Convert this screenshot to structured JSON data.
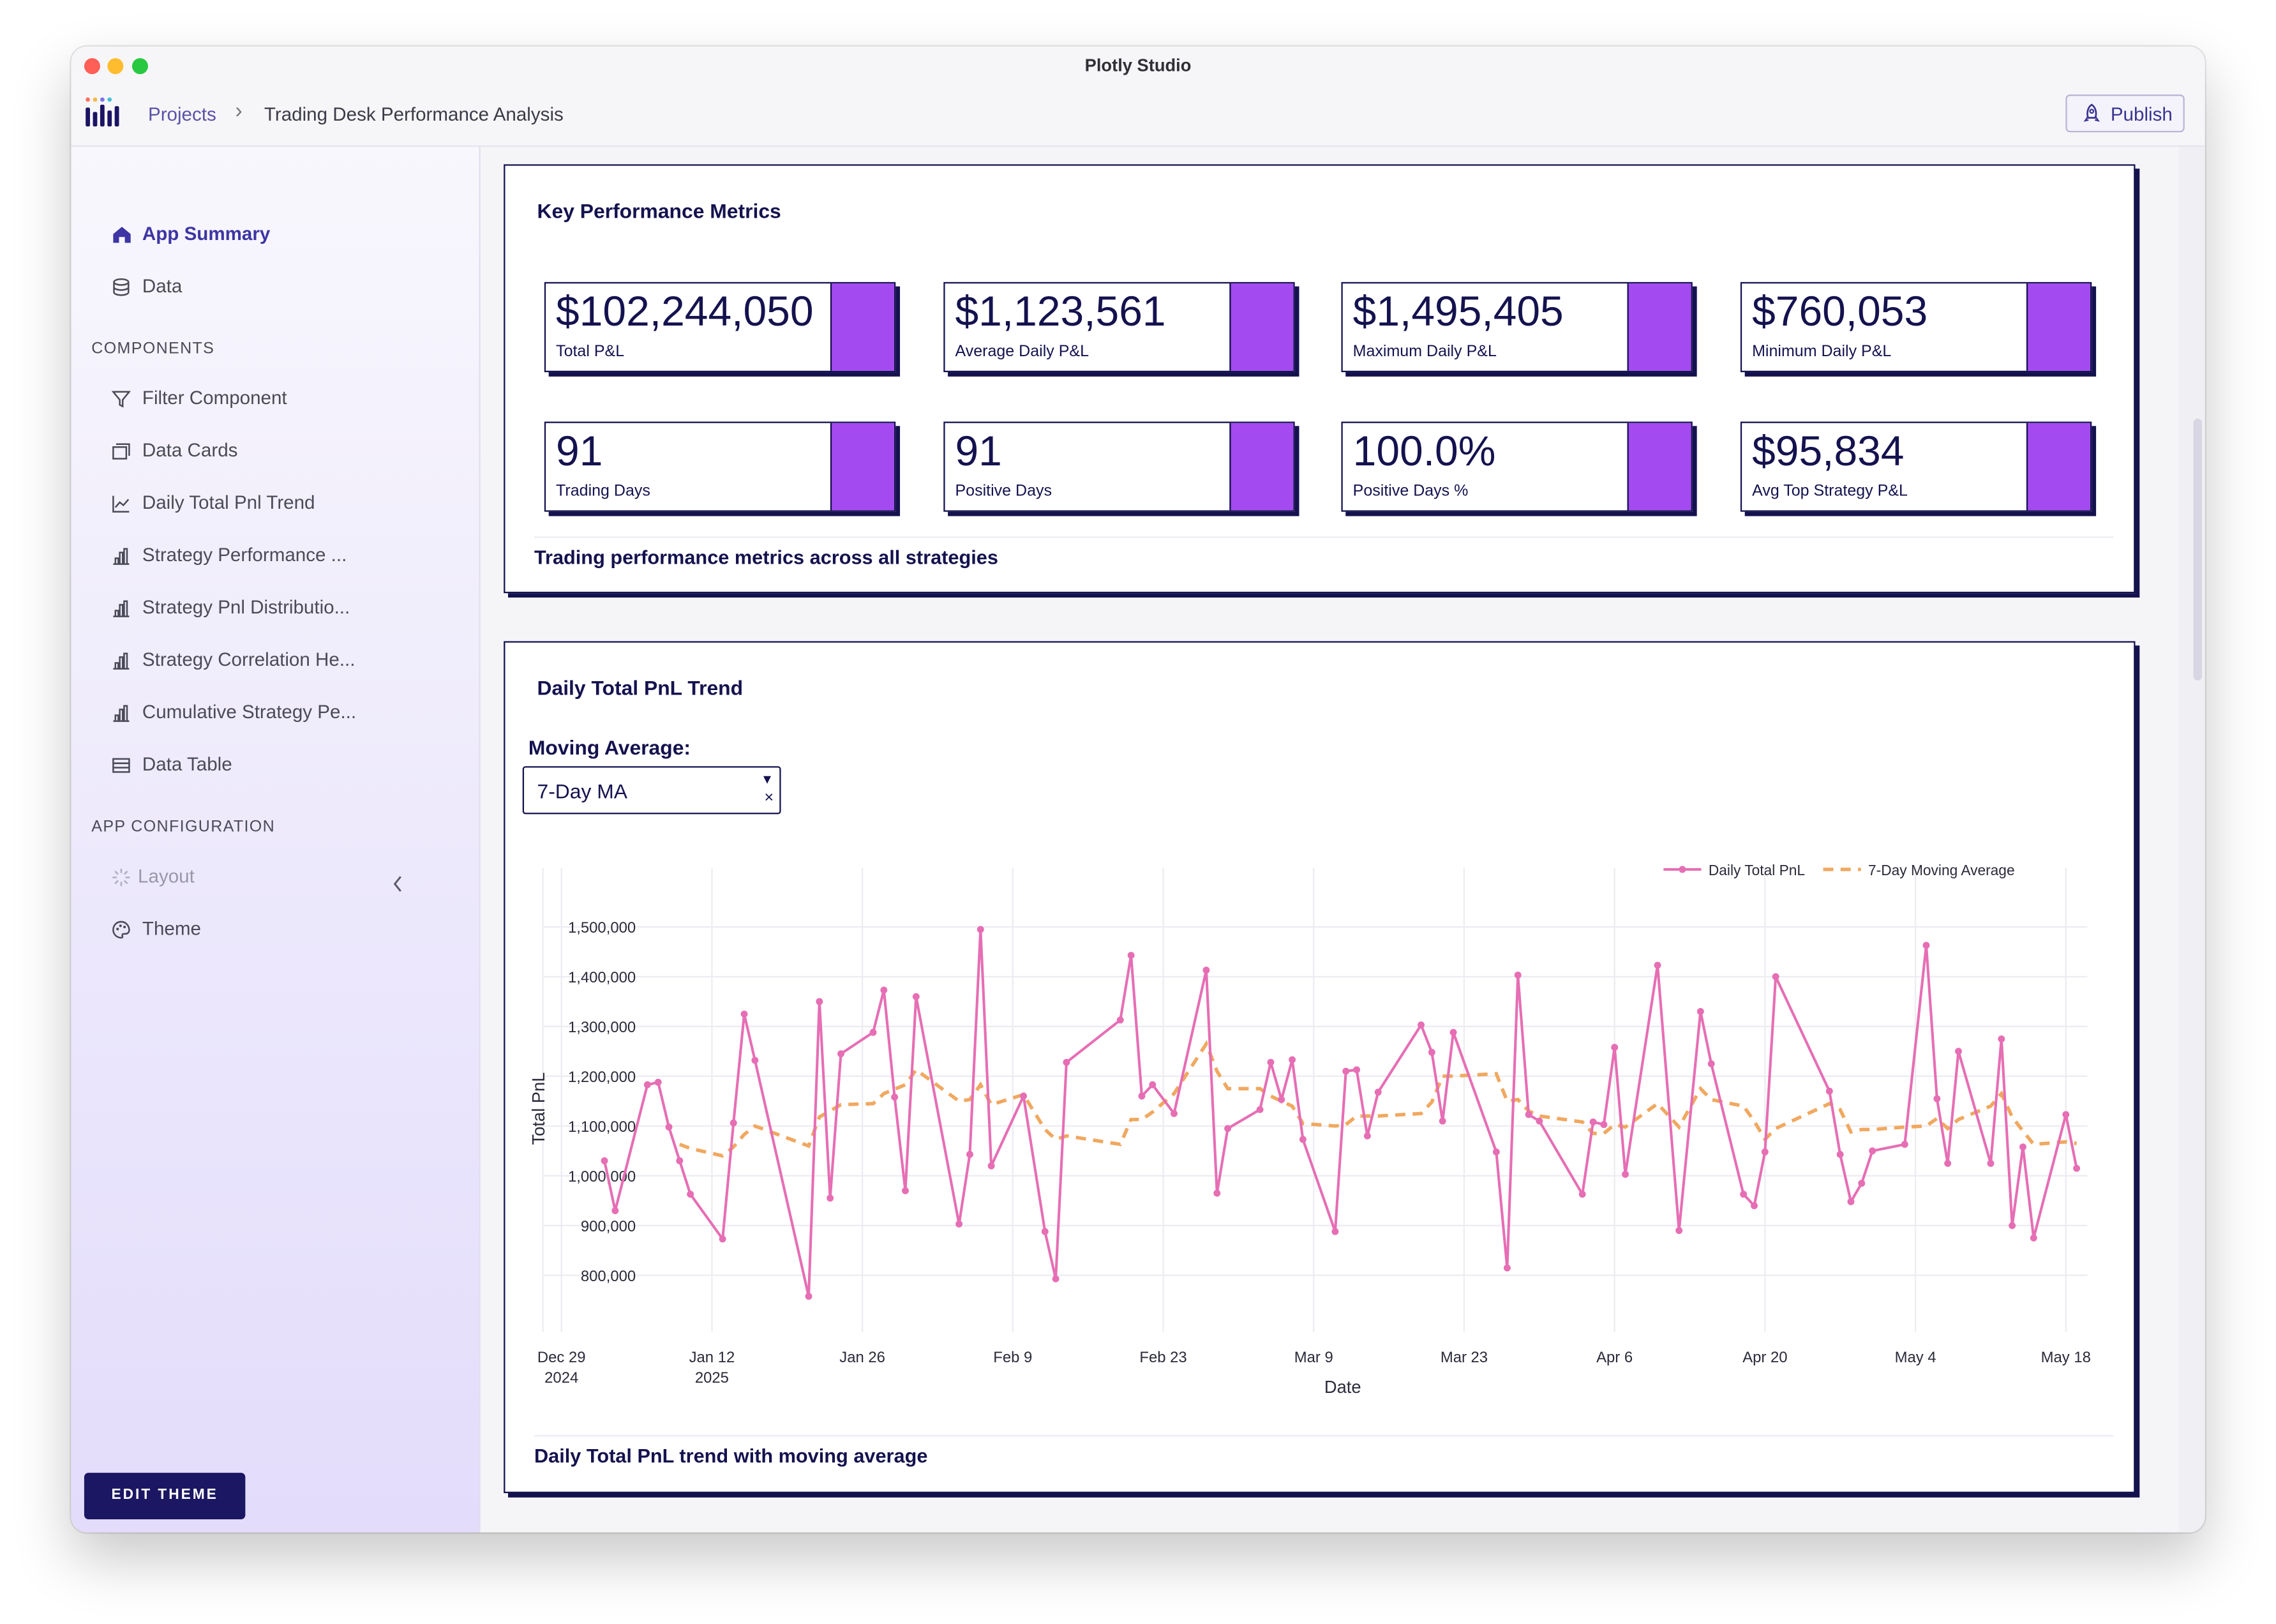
{
  "window": {
    "title": "Plotly Studio"
  },
  "colors": {
    "accent": "#a34af0",
    "navy": "#14124e",
    "pnl_line": "#e66eb4",
    "ma_line": "#f0a860"
  },
  "breadcrumb": {
    "root": "Projects",
    "current": "Trading Desk Performance Analysis"
  },
  "publish_label": "Publish",
  "sidebar": {
    "top": [
      {
        "label": "App Summary",
        "icon": "home-icon",
        "active": true
      },
      {
        "label": "Data",
        "icon": "database-icon"
      }
    ],
    "components_heading": "COMPONENTS",
    "components": [
      {
        "label": "Filter Component",
        "icon": "filter-icon"
      },
      {
        "label": "Data Cards",
        "icon": "cards-icon"
      },
      {
        "label": "Daily Total Pnl Trend",
        "icon": "line-chart-icon"
      },
      {
        "label": "Strategy Performance ...",
        "icon": "bar-chart-icon"
      },
      {
        "label": "Strategy Pnl Distributio...",
        "icon": "bar-chart-icon"
      },
      {
        "label": "Strategy Correlation He...",
        "icon": "bar-chart-icon"
      },
      {
        "label": "Cumulative Strategy Pe...",
        "icon": "bar-chart-icon"
      },
      {
        "label": "Data Table",
        "icon": "table-icon"
      }
    ],
    "config_heading": "APP CONFIGURATION",
    "config": [
      {
        "label": "Layout",
        "icon": "loading-icon",
        "disabled": true
      },
      {
        "label": "Theme",
        "icon": "palette-icon"
      }
    ],
    "edit_theme": "EDIT THEME"
  },
  "kpi_card": {
    "title": "Key Performance Metrics",
    "metrics": [
      {
        "value": "$102,244,050",
        "label": "Total P&L"
      },
      {
        "value": "$1,123,561",
        "label": "Average Daily P&L"
      },
      {
        "value": "$1,495,405",
        "label": "Maximum Daily P&L"
      },
      {
        "value": "$760,053",
        "label": "Minimum Daily P&L"
      },
      {
        "value": "91",
        "label": "Trading Days"
      },
      {
        "value": "91",
        "label": "Positive Days"
      },
      {
        "value": "100.0%",
        "label": "Positive Days %"
      },
      {
        "value": "$95,834",
        "label": "Avg Top Strategy P&L"
      }
    ],
    "footer": "Trading performance metrics across all strategies"
  },
  "trend_card": {
    "title": "Daily Total PnL Trend",
    "ma_label": "Moving Average:",
    "ma_value": "7-Day MA",
    "clear_symbol": "×",
    "footer": "Daily Total PnL trend with moving average"
  },
  "chart_data": {
    "type": "line",
    "xlabel": "Date",
    "ylabel": "Total PnL",
    "x_ticks": [
      {
        "date": "2024-12-29",
        "label": [
          "Dec 29",
          "2024"
        ]
      },
      {
        "date": "2025-01-12",
        "label": [
          "Jan 12",
          "2025"
        ]
      },
      {
        "date": "2025-01-26",
        "label": [
          "Jan 26"
        ]
      },
      {
        "date": "2025-02-09",
        "label": [
          "Feb 9"
        ]
      },
      {
        "date": "2025-02-23",
        "label": [
          "Feb 23"
        ]
      },
      {
        "date": "2025-03-09",
        "label": [
          "Mar 9"
        ]
      },
      {
        "date": "2025-03-23",
        "label": [
          "Mar 23"
        ]
      },
      {
        "date": "2025-04-06",
        "label": [
          "Apr 6"
        ]
      },
      {
        "date": "2025-04-20",
        "label": [
          "Apr 20"
        ]
      },
      {
        "date": "2025-05-04",
        "label": [
          "May 4"
        ]
      },
      {
        "date": "2025-05-18",
        "label": [
          "May 18"
        ]
      }
    ],
    "y_ticks": [
      800000,
      900000,
      1000000,
      1100000,
      1200000,
      1300000,
      1400000,
      1500000
    ],
    "y_tick_labels": [
      "800,000",
      "900,000",
      "1,000,000",
      "1,100,000",
      "1,200,000",
      "1,300,000",
      "1,400,000",
      "1,500,000"
    ],
    "xlim": [
      "2024-12-27",
      "2025-05-20"
    ],
    "ylim": [
      710000,
      1560000
    ],
    "grid": true,
    "legend_position": "top-right",
    "series": [
      {
        "name": "Daily Total PnL",
        "style": "line+markers",
        "points": [
          [
            "2025-01-02",
            1030000
          ],
          [
            "2025-01-03",
            930000
          ],
          [
            "2025-01-06",
            1183000
          ],
          [
            "2025-01-07",
            1188000
          ],
          [
            "2025-01-08",
            1098000
          ],
          [
            "2025-01-09",
            1030000
          ],
          [
            "2025-01-10",
            963000
          ],
          [
            "2025-01-13",
            873000
          ],
          [
            "2025-01-14",
            1106000
          ],
          [
            "2025-01-15",
            1325000
          ],
          [
            "2025-01-16",
            1232000
          ],
          [
            "2025-01-21",
            758000
          ],
          [
            "2025-01-22",
            1350000
          ],
          [
            "2025-01-23",
            955000
          ],
          [
            "2025-01-24",
            1245000
          ],
          [
            "2025-01-27",
            1288000
          ],
          [
            "2025-01-28",
            1373000
          ],
          [
            "2025-01-29",
            1158000
          ],
          [
            "2025-01-30",
            970000
          ],
          [
            "2025-01-31",
            1360000
          ],
          [
            "2025-02-04",
            903000
          ],
          [
            "2025-02-05",
            1043000
          ],
          [
            "2025-02-06",
            1495000
          ],
          [
            "2025-02-07",
            1020000
          ],
          [
            "2025-02-10",
            1160000
          ],
          [
            "2025-02-12",
            888000
          ],
          [
            "2025-02-13",
            793000
          ],
          [
            "2025-02-14",
            1228000
          ],
          [
            "2025-02-19",
            1313000
          ],
          [
            "2025-02-20",
            1443000
          ],
          [
            "2025-02-21",
            1160000
          ],
          [
            "2025-02-22",
            1183000
          ],
          [
            "2025-02-24",
            1125000
          ],
          [
            "2025-02-27",
            1413000
          ],
          [
            "2025-02-28",
            965000
          ],
          [
            "2025-03-01",
            1095000
          ],
          [
            "2025-03-04",
            1133000
          ],
          [
            "2025-03-05",
            1228000
          ],
          [
            "2025-03-06",
            1153000
          ],
          [
            "2025-03-07",
            1233000
          ],
          [
            "2025-03-08",
            1073000
          ],
          [
            "2025-03-11",
            888000
          ],
          [
            "2025-03-12",
            1210000
          ],
          [
            "2025-03-13",
            1213000
          ],
          [
            "2025-03-14",
            1080000
          ],
          [
            "2025-03-15",
            1168000
          ],
          [
            "2025-03-19",
            1303000
          ],
          [
            "2025-03-20",
            1248000
          ],
          [
            "2025-03-21",
            1110000
          ],
          [
            "2025-03-22",
            1288000
          ],
          [
            "2025-03-26",
            1048000
          ],
          [
            "2025-03-27",
            815000
          ],
          [
            "2025-03-28",
            1403000
          ],
          [
            "2025-03-29",
            1123000
          ],
          [
            "2025-03-30",
            1110000
          ],
          [
            "2025-04-03",
            963000
          ],
          [
            "2025-04-04",
            1108000
          ],
          [
            "2025-04-05",
            1103000
          ],
          [
            "2025-04-06",
            1258000
          ],
          [
            "2025-04-07",
            1003000
          ],
          [
            "2025-04-10",
            1423000
          ],
          [
            "2025-04-12",
            890000
          ],
          [
            "2025-04-14",
            1330000
          ],
          [
            "2025-04-15",
            1225000
          ],
          [
            "2025-04-18",
            963000
          ],
          [
            "2025-04-19",
            940000
          ],
          [
            "2025-04-20",
            1048000
          ],
          [
            "2025-04-21",
            1400000
          ],
          [
            "2025-04-26",
            1170000
          ],
          [
            "2025-04-27",
            1043000
          ],
          [
            "2025-04-28",
            948000
          ],
          [
            "2025-04-29",
            985000
          ],
          [
            "2025-04-30",
            1050000
          ],
          [
            "2025-05-03",
            1063000
          ],
          [
            "2025-05-05",
            1463000
          ],
          [
            "2025-05-06",
            1155000
          ],
          [
            "2025-05-07",
            1025000
          ],
          [
            "2025-05-08",
            1250000
          ],
          [
            "2025-05-11",
            1025000
          ],
          [
            "2025-05-12",
            1275000
          ],
          [
            "2025-05-13",
            900000
          ],
          [
            "2025-05-14",
            1058000
          ],
          [
            "2025-05-15",
            875000
          ],
          [
            "2025-05-18",
            1123000
          ],
          [
            "2025-05-19",
            1015000
          ]
        ]
      },
      {
        "name": "7-Day Moving Average",
        "style": "dashed",
        "points": [
          [
            "2025-01-09",
            1063000
          ],
          [
            "2025-01-10",
            1055000
          ],
          [
            "2025-01-13",
            1040000
          ],
          [
            "2025-01-14",
            1058000
          ],
          [
            "2025-01-15",
            1083000
          ],
          [
            "2025-01-16",
            1100000
          ],
          [
            "2025-01-21",
            1060000
          ],
          [
            "2025-01-22",
            1118000
          ],
          [
            "2025-01-24",
            1143000
          ],
          [
            "2025-01-27",
            1145000
          ],
          [
            "2025-01-28",
            1165000
          ],
          [
            "2025-01-30",
            1183000
          ],
          [
            "2025-01-31",
            1213000
          ],
          [
            "2025-02-04",
            1150000
          ],
          [
            "2025-02-05",
            1153000
          ],
          [
            "2025-02-06",
            1183000
          ],
          [
            "2025-02-07",
            1143000
          ],
          [
            "2025-02-10",
            1163000
          ],
          [
            "2025-02-12",
            1093000
          ],
          [
            "2025-02-13",
            1073000
          ],
          [
            "2025-02-14",
            1080000
          ],
          [
            "2025-02-19",
            1063000
          ],
          [
            "2025-02-20",
            1113000
          ],
          [
            "2025-02-21",
            1113000
          ],
          [
            "2025-02-22",
            1128000
          ],
          [
            "2025-02-24",
            1165000
          ],
          [
            "2025-02-27",
            1265000
          ],
          [
            "2025-02-28",
            1210000
          ],
          [
            "2025-03-01",
            1175000
          ],
          [
            "2025-03-04",
            1175000
          ],
          [
            "2025-03-05",
            1160000
          ],
          [
            "2025-03-06",
            1150000
          ],
          [
            "2025-03-07",
            1140000
          ],
          [
            "2025-03-08",
            1105000
          ],
          [
            "2025-03-11",
            1100000
          ],
          [
            "2025-03-12",
            1103000
          ],
          [
            "2025-03-13",
            1120000
          ],
          [
            "2025-03-14",
            1120000
          ],
          [
            "2025-03-15",
            1120000
          ],
          [
            "2025-03-19",
            1125000
          ],
          [
            "2025-03-20",
            1148000
          ],
          [
            "2025-03-21",
            1200000
          ],
          [
            "2025-03-22",
            1200000
          ],
          [
            "2025-03-26",
            1205000
          ],
          [
            "2025-03-27",
            1150000
          ],
          [
            "2025-03-28",
            1153000
          ],
          [
            "2025-03-29",
            1130000
          ],
          [
            "2025-03-30",
            1120000
          ],
          [
            "2025-04-03",
            1108000
          ],
          [
            "2025-04-04",
            1085000
          ],
          [
            "2025-04-05",
            1085000
          ],
          [
            "2025-04-06",
            1103000
          ],
          [
            "2025-04-07",
            1098000
          ],
          [
            "2025-04-10",
            1145000
          ],
          [
            "2025-04-12",
            1098000
          ],
          [
            "2025-04-14",
            1175000
          ],
          [
            "2025-04-15",
            1153000
          ],
          [
            "2025-04-18",
            1140000
          ],
          [
            "2025-04-19",
            1110000
          ],
          [
            "2025-04-20",
            1073000
          ],
          [
            "2025-04-21",
            1095000
          ],
          [
            "2025-04-26",
            1145000
          ],
          [
            "2025-04-27",
            1133000
          ],
          [
            "2025-04-28",
            1088000
          ],
          [
            "2025-04-29",
            1093000
          ],
          [
            "2025-04-30",
            1093000
          ],
          [
            "2025-05-03",
            1098000
          ],
          [
            "2025-05-05",
            1100000
          ],
          [
            "2025-05-06",
            1115000
          ],
          [
            "2025-05-07",
            1095000
          ],
          [
            "2025-05-08",
            1113000
          ],
          [
            "2025-05-11",
            1140000
          ],
          [
            "2025-05-12",
            1165000
          ],
          [
            "2025-05-13",
            1118000
          ],
          [
            "2025-05-14",
            1090000
          ],
          [
            "2025-05-15",
            1063000
          ],
          [
            "2025-05-18",
            1068000
          ],
          [
            "2025-05-19",
            1065000
          ]
        ]
      }
    ]
  }
}
